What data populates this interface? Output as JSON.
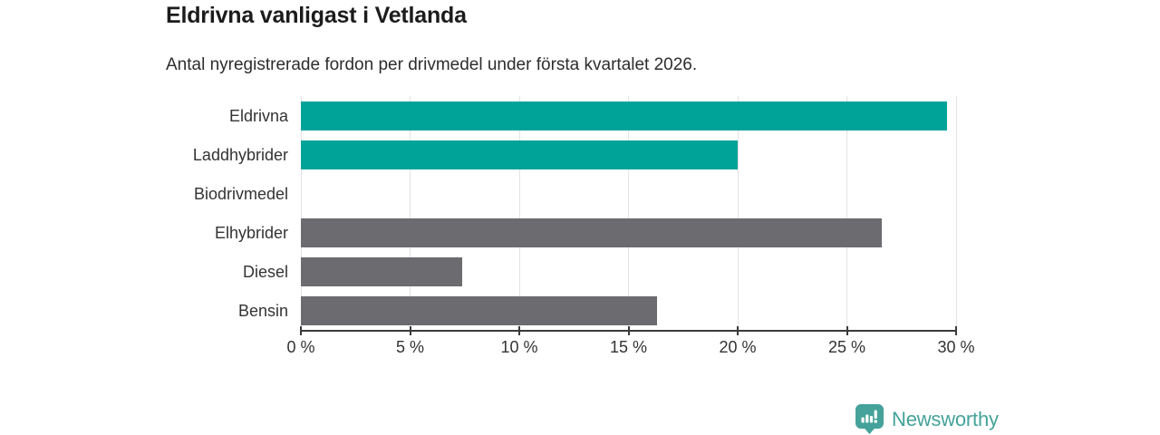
{
  "header": {
    "title": "Eldrivna vanligast i Vetlanda",
    "subtitle": "Antal nyregistrerade fordon per drivmedel under första kvartalet 2026."
  },
  "chart_data": {
    "type": "bar",
    "orientation": "horizontal",
    "title": "Eldrivna vanligast i Vetlanda",
    "subtitle": "Antal nyregistrerade fordon per drivmedel under första kvartalet 2026.",
    "categories": [
      "Eldrivna",
      "Laddhybrider",
      "Biodrivmedel",
      "Elhybrider",
      "Diesel",
      "Bensin"
    ],
    "values": [
      29.6,
      20.0,
      0,
      26.6,
      7.4,
      16.3
    ],
    "unit": "%",
    "bar_colors": [
      "#00a398",
      "#00a398",
      "#6b6b70",
      "#6b6b70",
      "#6b6b70",
      "#6b6b70"
    ],
    "xlabel": "",
    "ylabel": "",
    "xlim": [
      0,
      30
    ],
    "x_tick_values": [
      0,
      5,
      10,
      15,
      20,
      25,
      30
    ],
    "x_tick_labels": [
      "0 %",
      "5 %",
      "10 %",
      "15 %",
      "20 %",
      "25 %",
      "30 %"
    ],
    "grid": true,
    "legend": false
  },
  "footer": {
    "brand": "Newsworthy"
  },
  "colors": {
    "accent": "#00a398",
    "muted_bar": "#6b6b70",
    "gridline": "#e3e3e3",
    "axis": "#3b3b3b",
    "title_text": "#1c1c1c",
    "body_text": "#333333",
    "brand": "#44a29a"
  }
}
